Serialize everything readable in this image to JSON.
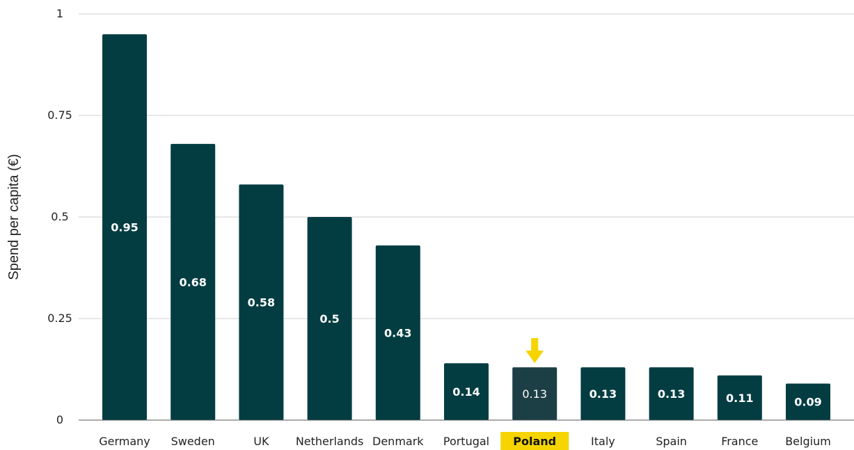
{
  "chart_data": {
    "type": "bar",
    "ylabel": "Spend per capita (€)",
    "xlabel": "",
    "ylim": [
      0,
      1
    ],
    "yticks": [
      0,
      0.25,
      0.5,
      0.75,
      1
    ],
    "ytick_labels": [
      "0",
      "0.25",
      "0.5",
      "0.75",
      "1"
    ],
    "grid": true,
    "categories": [
      "Germany",
      "Sweden",
      "UK",
      "Netherlands",
      "Denmark",
      "Portugal",
      "Poland",
      "Italy",
      "Spain",
      "France",
      "Belgium"
    ],
    "values": [
      0.95,
      0.68,
      0.58,
      0.5,
      0.43,
      0.14,
      0.13,
      0.13,
      0.13,
      0.11,
      0.09
    ],
    "value_labels": [
      "0.95",
      "0.68",
      "0.58",
      "0.5",
      "0.43",
      "0.14",
      "0.13",
      "0.13",
      "0.13",
      "0.11",
      "0.09"
    ],
    "highlight_category": "Poland",
    "colors": {
      "bar": "#033d42",
      "bar_highlight": "#1c3f45",
      "highlight": "#f5d400",
      "grid": "#cfcfcf"
    }
  }
}
